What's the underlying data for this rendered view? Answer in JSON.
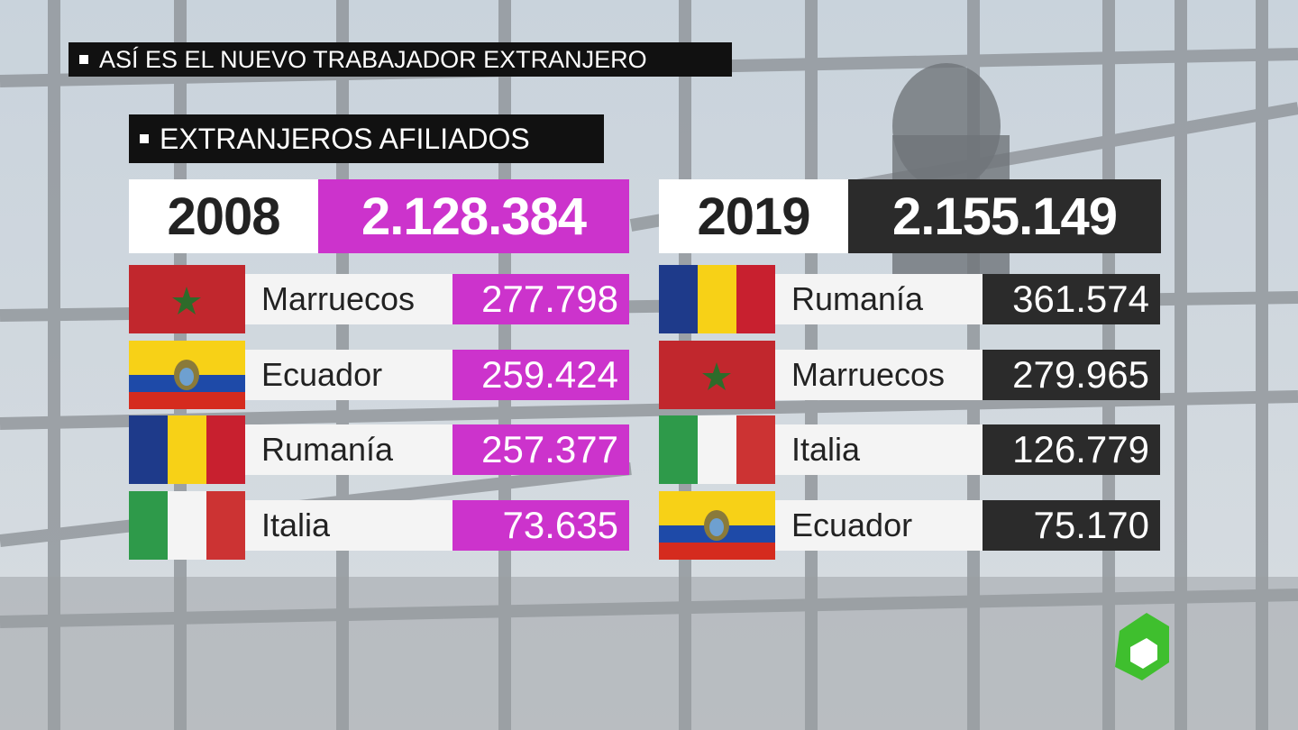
{
  "header": {
    "title": "ASÍ ES EL NUEVO TRABAJADOR EXTRANJERO",
    "subtitle": "EXTRANJEROS AFILIADOS"
  },
  "panels": [
    {
      "year": "2008",
      "total": "2.128.384",
      "rows": [
        [
          "Marruecos",
          "277.798"
        ],
        [
          "Ecuador",
          "259.424"
        ],
        [
          "Rumanía",
          "257.377"
        ],
        [
          "Italia",
          "73.635"
        ]
      ]
    },
    {
      "year": "2019",
      "total": "2.155.149",
      "rows": [
        [
          "Rumanía",
          "361.574"
        ],
        [
          "Marruecos",
          "279.965"
        ],
        [
          "Italia",
          "126.779"
        ],
        [
          "Ecuador",
          "75.170"
        ]
      ]
    }
  ]
}
